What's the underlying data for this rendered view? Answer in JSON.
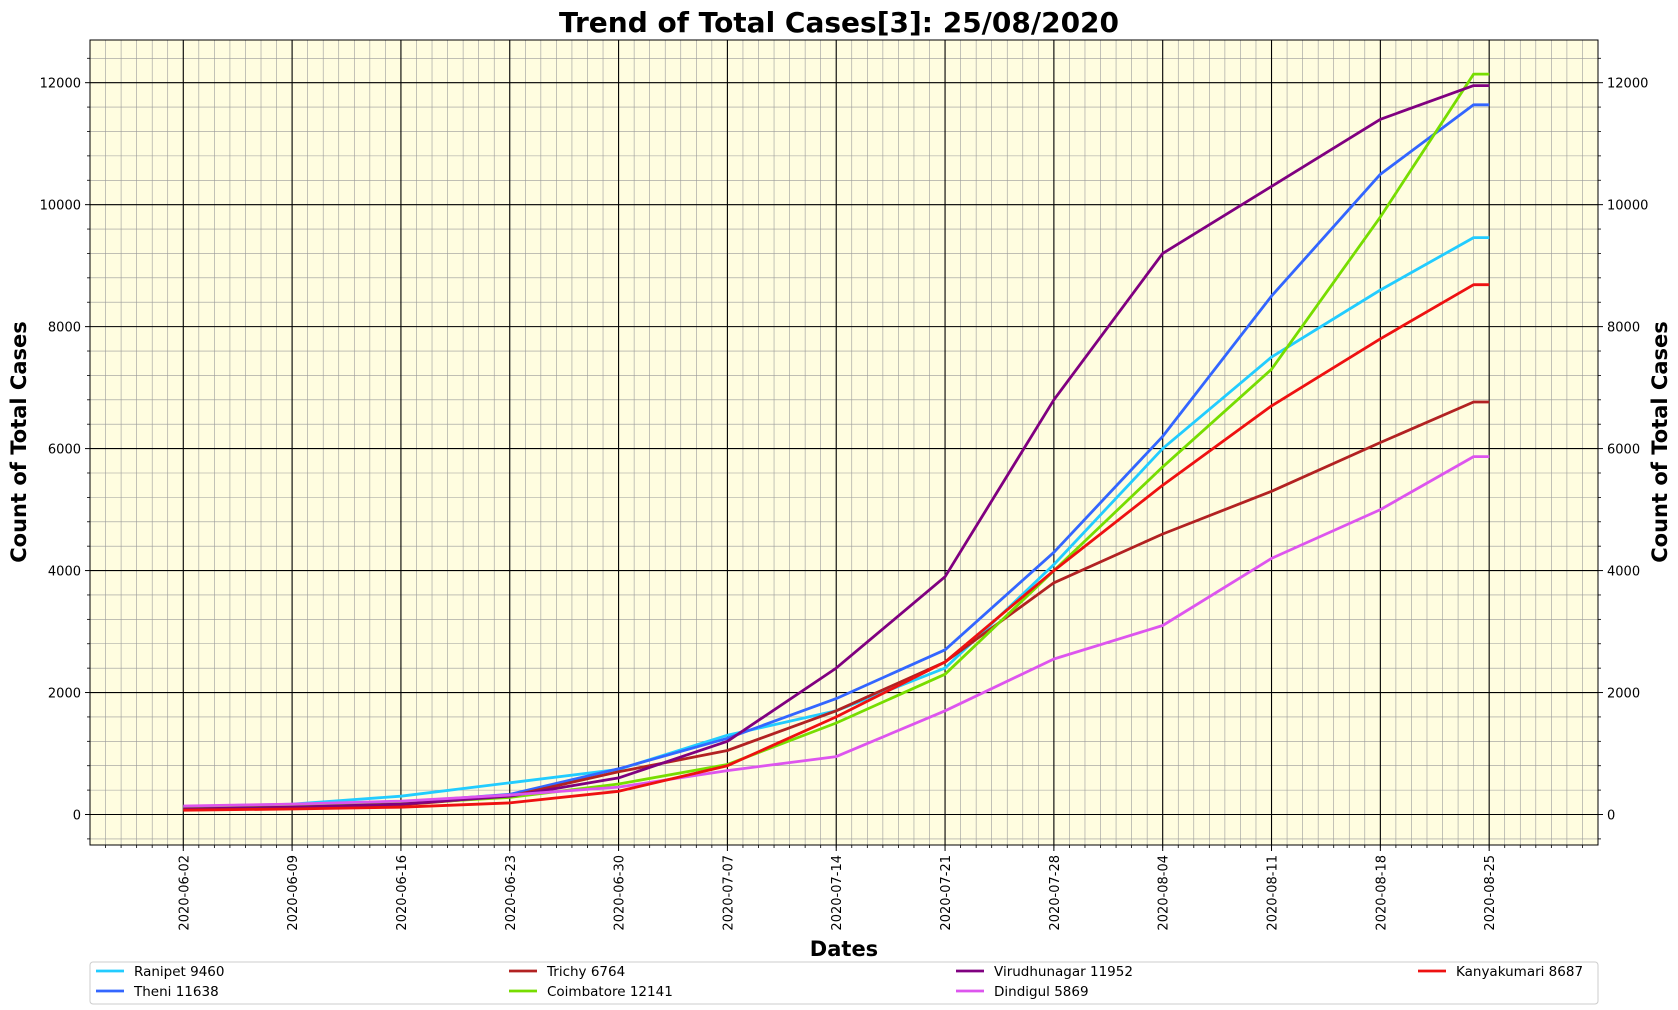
{
  "chart_data": {
    "type": "line",
    "title": "Trend of Total Cases[3]: 25/08/2020",
    "xlabel": "Dates",
    "ylabel": "Count of Total Cases",
    "ylabel_right": "Count of Total Cases",
    "xlim": [
      "2020-06-02",
      "2020-08-25"
    ],
    "ylim": [
      -500,
      12700
    ],
    "y_ticks": [
      0,
      2000,
      4000,
      6000,
      8000,
      10000,
      12000
    ],
    "x_ticks": [
      "2020-06-02",
      "2020-06-09",
      "2020-06-16",
      "2020-06-23",
      "2020-06-30",
      "2020-07-07",
      "2020-07-14",
      "2020-07-21",
      "2020-07-28",
      "2020-08-04",
      "2020-08-11",
      "2020-08-18",
      "2020-08-25"
    ],
    "grid": true,
    "background": "#fffde0",
    "legend_position": "bottom",
    "x": [
      "2020-06-02",
      "2020-06-09",
      "2020-06-16",
      "2020-06-23",
      "2020-06-30",
      "2020-07-07",
      "2020-07-14",
      "2020-07-21",
      "2020-07-28",
      "2020-08-04",
      "2020-08-11",
      "2020-08-18",
      "2020-08-24",
      "2020-08-25"
    ],
    "series": [
      {
        "name": "Ranipet 9460",
        "color": "#22ccff",
        "values": [
          130,
          170,
          300,
          520,
          740,
          1300,
          1700,
          2400,
          4100,
          6000,
          7500,
          8600,
          9460,
          9460
        ]
      },
      {
        "name": "Theni 11638",
        "color": "#3366ff",
        "values": [
          110,
          140,
          200,
          330,
          750,
          1250,
          1900,
          2700,
          4300,
          6200,
          8500,
          10500,
          11638,
          11638
        ]
      },
      {
        "name": "Trichy 6764",
        "color": "#b22222",
        "values": [
          80,
          110,
          160,
          300,
          700,
          1050,
          1700,
          2500,
          3800,
          4600,
          5300,
          6100,
          6764,
          6764
        ]
      },
      {
        "name": "Coimbatore 12141",
        "color": "#77dd00",
        "values": [
          100,
          130,
          180,
          280,
          500,
          820,
          1500,
          2300,
          4000,
          5700,
          7300,
          9800,
          12141,
          12141
        ]
      },
      {
        "name": "Virudhunagar 11952",
        "color": "#800080",
        "values": [
          90,
          120,
          170,
          300,
          600,
          1200,
          2400,
          3900,
          6800,
          9200,
          10300,
          11400,
          11952,
          11952
        ]
      },
      {
        "name": "Dindigul 5869",
        "color": "#dd55ee",
        "values": [
          140,
          170,
          220,
          320,
          450,
          720,
          950,
          1700,
          2550,
          3100,
          4200,
          5000,
          5869,
          5869
        ]
      },
      {
        "name": "Kanyakumari 8687",
        "color": "#ee1111",
        "values": [
          70,
          90,
          120,
          190,
          380,
          800,
          1600,
          2500,
          4000,
          5400,
          6700,
          7800,
          8687,
          8687
        ]
      }
    ]
  }
}
